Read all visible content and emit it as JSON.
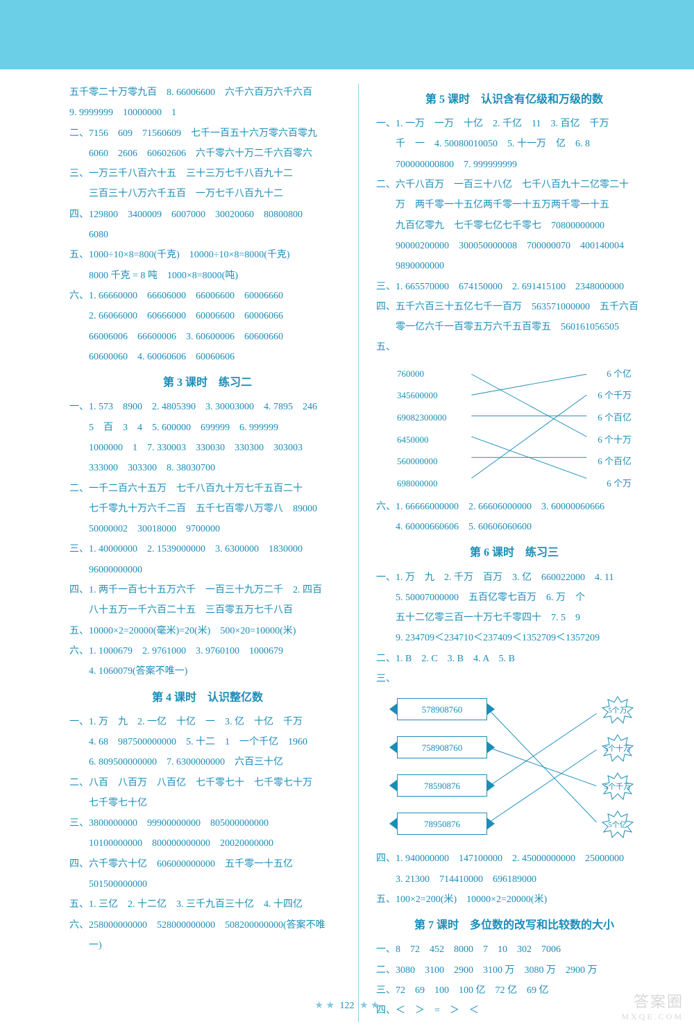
{
  "colors": {
    "ink": "#1a8db8",
    "header_bg": "#6bcfe8",
    "page_bg": "#ffffff",
    "divider": "#8ed4e8"
  },
  "typography": {
    "body_fontsize": 14,
    "title_fontsize": 16,
    "font_family": "SimSun"
  },
  "page_number": "122",
  "left": {
    "rows": [
      "五千零二十万零九百　8. 66006600　六千六百万六千六百",
      "9. 9999999　10000000　1",
      "二、7156　609　71560609　七千一百五十六万零六百零九",
      "　　6060　2606　60602606　六千零六十万二千六百零六",
      "三、一万三千八百六十五　三十三万七千八百九十二",
      "　　三百三十八万六千五百　一万七千八百九十二",
      "四、129800　3400009　6007000　30020060　80800800",
      "　　6080",
      "五、1000÷10×8=800(千克)　10000÷10×8=8000(千克)",
      "　　8000 千克 = 8 吨　1000×8=8000(吨)",
      "六、1. 66660000　66606000　66006600　60006660",
      "　　2. 66066000　60666000　60006600　60006066",
      "　　66006006　66600006　3. 60600006　60600660",
      "　　60600060　4. 60060606　60060606"
    ],
    "s3_title": "第 3 课时　练习二",
    "s3_rows": [
      "一、1. 573　8900　2. 4805390　3. 30003000　4. 7895　246",
      "　　5　百　3　4　5. 600000　699999　6. 999999",
      "　　1000000　1　7. 330003　330030　330300　303003",
      "　　333000　303300　8. 38030700",
      "二、一千二百六十五万　七千八百九十万七千五百二十",
      "　　七千零九十万六千二百　五千七百零八万零八　89000",
      "　　50000002　30018000　9700000",
      "三、1. 40000000　2. 1539000000　3. 6300000　1830000",
      "　　96000000000",
      "四、1. 两千一百七十五万六千　一百三十九万二千　2. 四百",
      "　　八十五万一千六百二十五　三百零五万七千八百",
      "五、10000×2=20000(毫米)=20(米)　500×20=10000(米)",
      "六、1. 1000679　2. 9761000　3. 9760100　1000679",
      "　　4. 1060079(答案不唯一)"
    ],
    "s4_title": "第 4 课时　认识整亿数",
    "s4_rows": [
      "一、1. 万　九　2. 一亿　十亿　一　3. 亿　十亿　千万",
      "　　4. 68　987500000000　5. 十二　1　一个千亿　1960",
      "　　6. 809500000000　7. 6300000000　六百三十亿",
      "二、八百　八百万　八百亿　七千零七十　七千零七十万",
      "　　七千零七十亿",
      "三、3800000000　99900000000　805000000000",
      "　　10100000000　800000000000　20020000000",
      "四、六千零六十亿　606000000000　五千零一十五亿",
      "　　501500000000",
      "五、1. 三亿　2. 十二亿　3. 三千九百三十亿　4. 十四亿",
      "六、258000000000　528000000000　508200000000(答案不唯",
      "　　一)"
    ]
  },
  "right": {
    "s5_title": "第 5 课时　认识含有亿级和万级的数",
    "s5_rows": [
      "一、1. 一万　一万　十亿　2. 千亿　11　3. 百亿　千万",
      "　　千　一　4. 50080010050　5. 十一万　亿　6. 8",
      "　　700000000800　7. 999999999",
      "二、六千八百万　一百三十八亿　七千八百九十二亿零二十",
      "　　万　两千零一十五亿两千零一十五万两千零一十五",
      "　　九百亿零九　七千零七亿七千零七　70800000000",
      "　　90000200000　300050000008　700000070　400140004",
      "　　9890000000",
      "三、1. 665570000　674150000　2. 691415100　2348000000",
      "四、五千六百三十五亿七千一百万　563571000000　五千六百",
      "　　零一亿六千一百零五万六千五百零五　560161056505"
    ],
    "match1": {
      "left_items": [
        "760000",
        "345600000",
        "69082300000",
        "6450000",
        "560000000",
        "698000000"
      ],
      "right_items": [
        "6 个亿",
        "6 个千万",
        "6 个百亿",
        "6 个十万",
        "6 个百亿",
        "6 个万"
      ],
      "edges": [
        [
          0,
          3
        ],
        [
          1,
          0
        ],
        [
          2,
          2
        ],
        [
          3,
          5
        ],
        [
          4,
          4
        ],
        [
          5,
          1
        ]
      ],
      "line_color": "#1a8db8",
      "font_size": 13
    },
    "s5_rows2": [
      "六、1. 66666000000　2. 66606000000　3. 60000060666",
      "　　4. 60000660606　5. 60606060600"
    ],
    "s6_title": "第 6 课时　练习三",
    "s6_rows": [
      "一、1. 万　九　2. 千万　百万　3. 亿　660022000　4. 11",
      "　　5. 50007000000　五百亿零七百万　6. 万　个",
      "　　五十二亿零三百一十万七千零四十　7. 5　9",
      "　　9. 234709＜234710＜237409＜1352709＜1357209",
      "二、1. B　2. C　3. B　4. A　5. B",
      "三、"
    ],
    "match2": {
      "boxes": [
        "578908760",
        "758908760",
        "78590876",
        "78950876"
      ],
      "stars": [
        "5个万",
        "5个十万",
        "5个千万",
        "5个亿"
      ],
      "edges": [
        [
          0,
          3
        ],
        [
          1,
          2
        ],
        [
          2,
          0
        ],
        [
          3,
          1
        ]
      ],
      "line_color": "#1a8db8",
      "font_size": 13
    },
    "s6_rows2": [
      "四、1. 940000000　147100000　2. 45000000000　25000000",
      "　　3. 21300　714410000　696189000",
      "五、100×2=200(米)　10000×2=20000(米)"
    ],
    "s7_title": "第 7 课时　多位数的改写和比较数的大小",
    "s7_rows": [
      "一、8　72　452　8000　7　10　302　7006",
      "二、3080　3100　2900　3100 万　3080 万　2900 万",
      "三、72　69　100　100 亿　72 亿　69 亿",
      "四、＜　＞　=　＞　＜"
    ]
  },
  "watermark": {
    "main": "答案圈",
    "sub": "MXQE.COM"
  }
}
